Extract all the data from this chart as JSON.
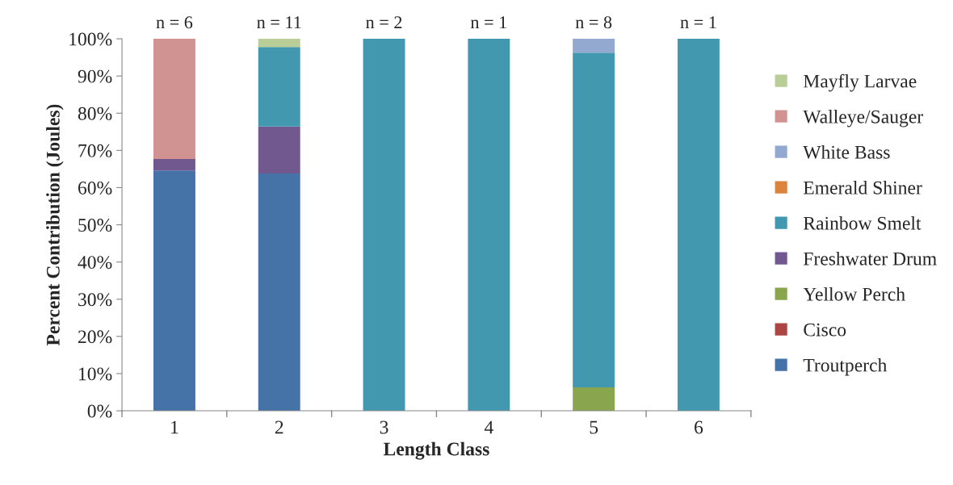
{
  "chart_data": {
    "type": "bar",
    "stacked": true,
    "xlabel": "Length Class",
    "ylabel": "Percent Contribution (Joules)",
    "categories": [
      "1",
      "2",
      "3",
      "4",
      "5",
      "6"
    ],
    "series": [
      {
        "name": "Troutperch",
        "color": "#4572a7",
        "values": [
          64.6,
          63.8,
          0,
          0,
          0,
          0
        ]
      },
      {
        "name": "Cisco",
        "color": "#aa4643",
        "values": [
          0,
          0,
          0,
          0,
          0,
          0
        ]
      },
      {
        "name": "Yellow Perch",
        "color": "#89a54e",
        "values": [
          0,
          0,
          0,
          0,
          6.3,
          0
        ]
      },
      {
        "name": "Freshwater Drum",
        "color": "#71588f",
        "values": [
          3.1,
          12.6,
          0,
          0,
          0,
          0
        ]
      },
      {
        "name": "Rainbow Smelt",
        "color": "#4198af",
        "values": [
          0,
          21.4,
          100,
          100,
          90,
          100
        ]
      },
      {
        "name": "Emerald Shiner",
        "color": "#db843d",
        "values": [
          0,
          0,
          0,
          0,
          0,
          0
        ]
      },
      {
        "name": "White Bass",
        "color": "#93a9cf",
        "values": [
          0,
          0,
          0,
          0,
          3.7,
          0
        ]
      },
      {
        "name": "Walleye/Sauger",
        "color": "#d19392",
        "values": [
          32.3,
          0,
          0,
          0,
          0,
          0
        ]
      },
      {
        "name": "Mayfly Larvae",
        "color": "#b9cd96",
        "values": [
          0,
          2.2,
          0,
          0,
          0,
          0
        ]
      }
    ],
    "ylim": [
      0,
      100
    ],
    "yticks": [
      {
        "value": 0,
        "label": "0%"
      },
      {
        "value": 10,
        "label": "10%"
      },
      {
        "value": 20,
        "label": "20%"
      },
      {
        "value": 30,
        "label": "30%"
      },
      {
        "value": 40,
        "label": "40%"
      },
      {
        "value": 50,
        "label": "50%"
      },
      {
        "value": 60,
        "label": "60%"
      },
      {
        "value": 70,
        "label": "70%"
      },
      {
        "value": 80,
        "label": "80%"
      },
      {
        "value": 90,
        "label": "90%"
      },
      {
        "value": 100,
        "label": "100%"
      }
    ],
    "annotations": [
      {
        "text": "n = 6",
        "x": "1",
        "y": 100
      },
      {
        "text": "n = 11",
        "x": "2",
        "y": 100
      },
      {
        "text": "n = 2",
        "x": "3",
        "y": 100
      },
      {
        "text": "n = 1",
        "x": "4",
        "y": 100
      },
      {
        "text": "n = 8",
        "x": "5",
        "y": 100
      },
      {
        "text": "n = 1",
        "x": "6",
        "y": 100
      }
    ],
    "grid": false,
    "legend": "right"
  }
}
